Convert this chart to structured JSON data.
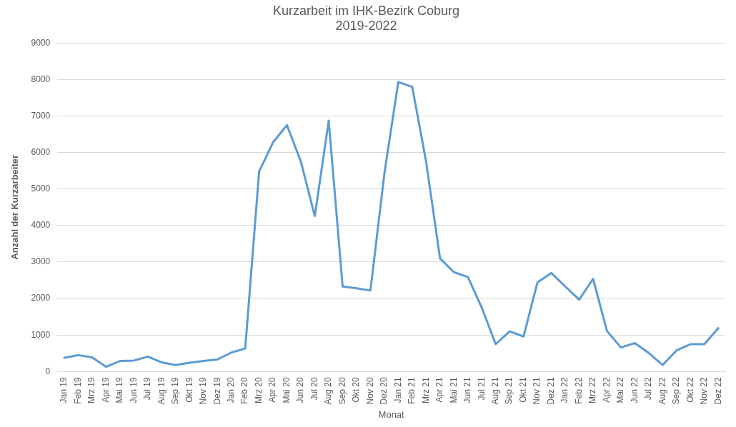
{
  "chart_data": {
    "type": "line",
    "title": [
      "Kurzarbeit im IHK-Bezirk Coburg",
      "2019-2022"
    ],
    "xlabel": "Monat",
    "ylabel": "Anzahl der Kurzarbeiter",
    "categories": [
      "Jan 19",
      "Feb 19",
      "Mrz 19",
      "Apr 19",
      "Mai 19",
      "Jun 19",
      "Jul 19",
      "Aug 19",
      "Sep 19",
      "Okt 19",
      "Nov 19",
      "Dez 19",
      "Jan 20",
      "Feb 20",
      "Mrz 20",
      "Apr 20",
      "Mai 20",
      "Jun 20",
      "Jul 20",
      "Aug 20",
      "Sep 20",
      "Okt 20",
      "Nov 20",
      "Dez 20",
      "Jan 21",
      "Feb 21",
      "Mrz 21",
      "Apr 21",
      "Mai 21",
      "Jun 21",
      "Jul 21",
      "Aug 21",
      "Sep 21",
      "Okt 21",
      "Nov 21",
      "Dez 21",
      "Jan 22",
      "Feb 22",
      "Mrz 22",
      "Apr 22",
      "Mai 22",
      "Jun 22",
      "Jul 22",
      "Aug 22",
      "Sep 22",
      "Okt 22",
      "Nov 22",
      "Dez 22"
    ],
    "series": [
      {
        "color": "#5b9bd5",
        "values": [
          380,
          450,
          390,
          130,
          290,
          300,
          410,
          250,
          180,
          240,
          290,
          330,
          520,
          630,
          5480,
          6280,
          6750,
          5750,
          4260,
          6870,
          2330,
          2280,
          2220,
          5420,
          7930,
          7800,
          5750,
          3100,
          2720,
          2590,
          1750,
          750,
          1100,
          960,
          2440,
          2700,
          2330,
          1970,
          2540,
          1110,
          660,
          780,
          510,
          180,
          580,
          750,
          750,
          1190
        ]
      }
    ],
    "ylim": [
      0,
      9000
    ],
    "yticks": [
      0,
      1000,
      2000,
      3000,
      4000,
      5000,
      6000,
      7000,
      8000,
      9000
    ],
    "grid": "y",
    "legend": false,
    "marker": "none",
    "line_style": "solid"
  }
}
